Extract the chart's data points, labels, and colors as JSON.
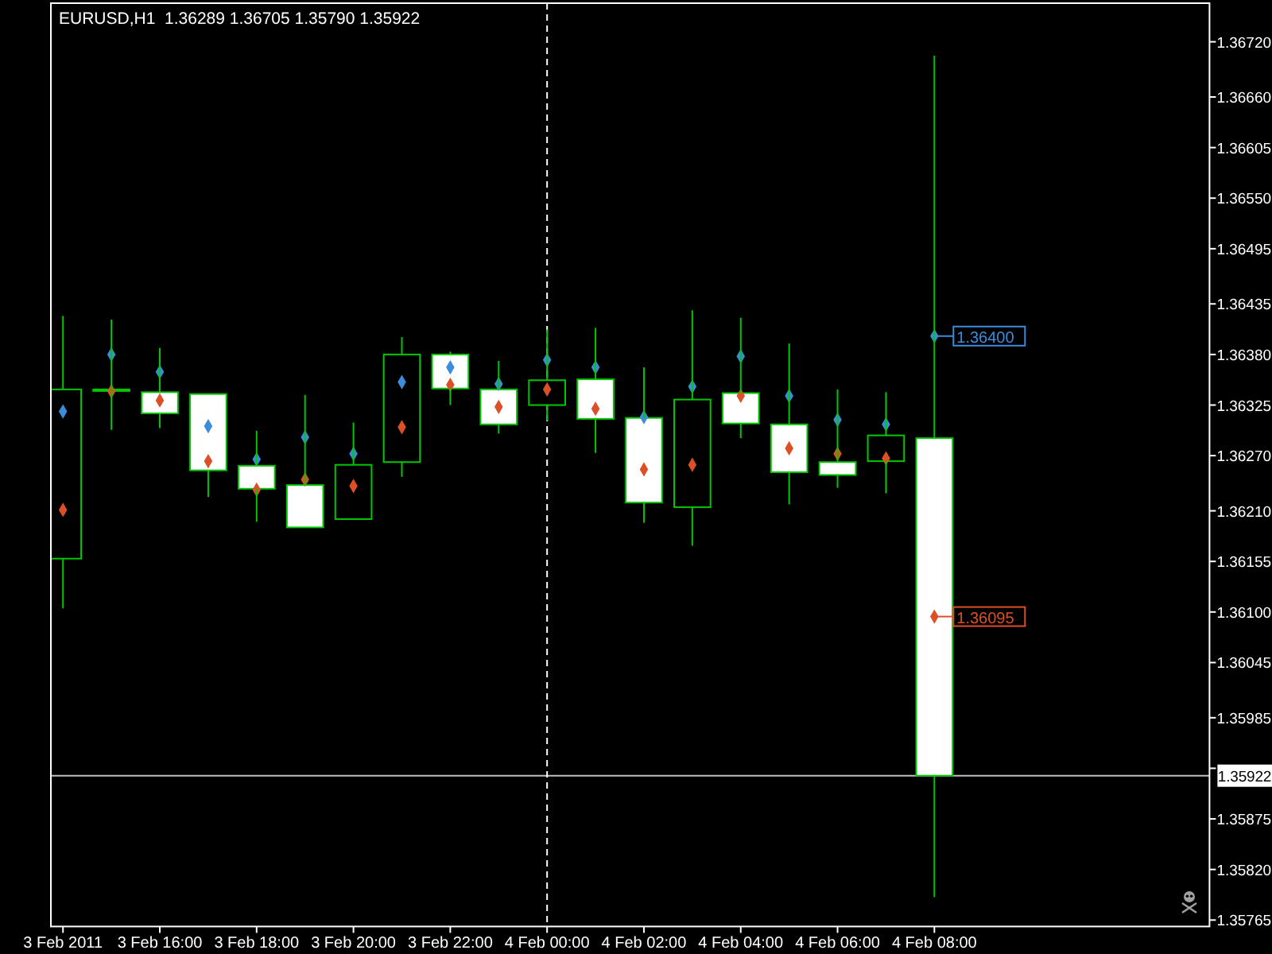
{
  "chart_data": {
    "type": "candlestick",
    "title": "EURUSD,H1  1.36289 1.36705 1.35790 1.35922",
    "color": "#00c800",
    "x": [
      "2011-02-03T14:00",
      "2011-02-03T15:00",
      "2011-02-03T16:00",
      "2011-02-03T17:00",
      "2011-02-03T18:00",
      "2011-02-03T19:00",
      "2011-02-03T20:00",
      "2011-02-03T21:00",
      "2011-02-03T22:00",
      "2011-02-03T23:00",
      "2011-02-04T00:00",
      "2011-02-04T01:00",
      "2011-02-04T02:00",
      "2011-02-04T03:00",
      "2011-02-04T04:00",
      "2011-02-04T05:00",
      "2011-02-04T06:00",
      "2011-02-04T07:00",
      "2011-02-04T08:00"
    ],
    "ohlc": [
      [
        1.36158,
        1.36422,
        1.36104,
        1.36342
      ],
      [
        1.36342,
        1.36418,
        1.36298,
        1.36341
      ],
      [
        1.36339,
        1.36387,
        1.363,
        1.36316
      ],
      [
        1.36337,
        1.36337,
        1.36225,
        1.36254
      ],
      [
        1.36259,
        1.36297,
        1.36198,
        1.36234
      ],
      [
        1.36238,
        1.36336,
        1.36192,
        1.36192
      ],
      [
        1.36201,
        1.36306,
        1.36201,
        1.3626
      ],
      [
        1.36263,
        1.36399,
        1.36247,
        1.3638
      ],
      [
        1.3638,
        1.36383,
        1.36325,
        1.36343
      ],
      [
        1.36342,
        1.36373,
        1.36294,
        1.36304
      ],
      [
        1.36325,
        1.36407,
        1.36308,
        1.36352
      ],
      [
        1.36353,
        1.36409,
        1.36273,
        1.3631
      ],
      [
        1.36311,
        1.36366,
        1.36197,
        1.36219
      ],
      [
        1.36214,
        1.36428,
        1.36172,
        1.36331
      ],
      [
        1.36338,
        1.3642,
        1.36289,
        1.36305
      ],
      [
        1.36304,
        1.36392,
        1.36217,
        1.36252
      ],
      [
        1.36263,
        1.36342,
        1.36235,
        1.36249
      ],
      [
        1.36264,
        1.36339,
        1.36229,
        1.36292
      ],
      [
        1.36289,
        1.36705,
        1.3579,
        1.35922
      ]
    ],
    "series": [
      {
        "type": "scatter",
        "color": "#3c8cdc",
        "marker": "diamond",
        "values": [
          1.36318,
          1.3638,
          1.36361,
          1.36302,
          1.36266,
          1.3629,
          1.36272,
          1.3635,
          1.36366,
          1.36348,
          1.36374,
          1.36366,
          1.36312,
          1.36345,
          1.36378,
          1.36335,
          1.36309,
          1.36304,
          1.364
        ],
        "value_labels": [
          null,
          null,
          null,
          null,
          null,
          null,
          null,
          null,
          null,
          null,
          null,
          null,
          null,
          null,
          null,
          null,
          null,
          null,
          "1.36400"
        ]
      },
      {
        "type": "scatter",
        "color": "#dc5028",
        "marker": "diamond",
        "values": [
          1.36211,
          1.3634,
          1.3633,
          1.36264,
          1.36233,
          1.36244,
          1.36237,
          1.36301,
          1.36347,
          1.36323,
          1.36342,
          1.36321,
          1.36255,
          1.3626,
          1.36335,
          1.36278,
          1.36272,
          1.36267,
          1.36095
        ],
        "value_labels": [
          null,
          null,
          null,
          null,
          null,
          null,
          null,
          null,
          null,
          null,
          null,
          null,
          null,
          null,
          null,
          null,
          null,
          null,
          "1.36095"
        ]
      }
    ],
    "xlim": [
      "2011-02-03T13:45",
      "2011-02-04T13:41"
    ],
    "xticks": [
      {
        "value": "2011-02-03T14:00",
        "label": "3 Feb 2011"
      },
      {
        "value": "2011-02-03T16:00",
        "label": "3 Feb 16:00"
      },
      {
        "value": "2011-02-03T18:00",
        "label": "3 Feb 18:00"
      },
      {
        "value": "2011-02-03T20:00",
        "label": "3 Feb 20:00"
      },
      {
        "value": "2011-02-03T22:00",
        "label": "3 Feb 22:00"
      },
      {
        "value": "2011-02-04T00:00",
        "label": "4 Feb 00:00"
      },
      {
        "value": "2011-02-04T02:00",
        "label": "4 Feb 02:00"
      },
      {
        "value": "2011-02-04T04:00",
        "label": "4 Feb 04:00"
      },
      {
        "value": "2011-02-04T06:00",
        "label": "4 Feb 06:00"
      },
      {
        "value": "2011-02-04T08:00",
        "label": "4 Feb 08:00"
      }
    ],
    "ylim": [
      1.35758,
      1.36762
    ],
    "yticks": [
      {
        "value": 1.3672,
        "label": "1.36720"
      },
      {
        "value": 1.3666,
        "label": "1.36660"
      },
      {
        "value": 1.36605,
        "label": "1.36605"
      },
      {
        "value": 1.3655,
        "label": "1.36550"
      },
      {
        "value": 1.36495,
        "label": "1.36495"
      },
      {
        "value": 1.36435,
        "label": "1.36435"
      },
      {
        "value": 1.3638,
        "label": "1.36380"
      },
      {
        "value": 1.36325,
        "label": "1.36325"
      },
      {
        "value": 1.3627,
        "label": "1.36270"
      },
      {
        "value": 1.3621,
        "label": "1.36210"
      },
      {
        "value": 1.36155,
        "label": "1.36155"
      },
      {
        "value": 1.361,
        "label": "1.36100"
      },
      {
        "value": 1.36045,
        "label": "1.36045"
      },
      {
        "value": 1.35985,
        "label": "1.35985"
      },
      {
        "value": 1.3593,
        "label": null
      },
      {
        "value": 1.35875,
        "label": "1.35875"
      },
      {
        "value": 1.3582,
        "label": "1.35820"
      },
      {
        "value": 1.35765,
        "label": "1.35765"
      }
    ],
    "ref_lines": [
      {
        "axis": "y",
        "value": 1.35922,
        "label": "1.35922",
        "color": "#c0c0c0"
      },
      {
        "axis": "x",
        "value": "2011-02-04T00:00",
        "color": "#ffffff",
        "line_style": "dashed"
      }
    ]
  }
}
